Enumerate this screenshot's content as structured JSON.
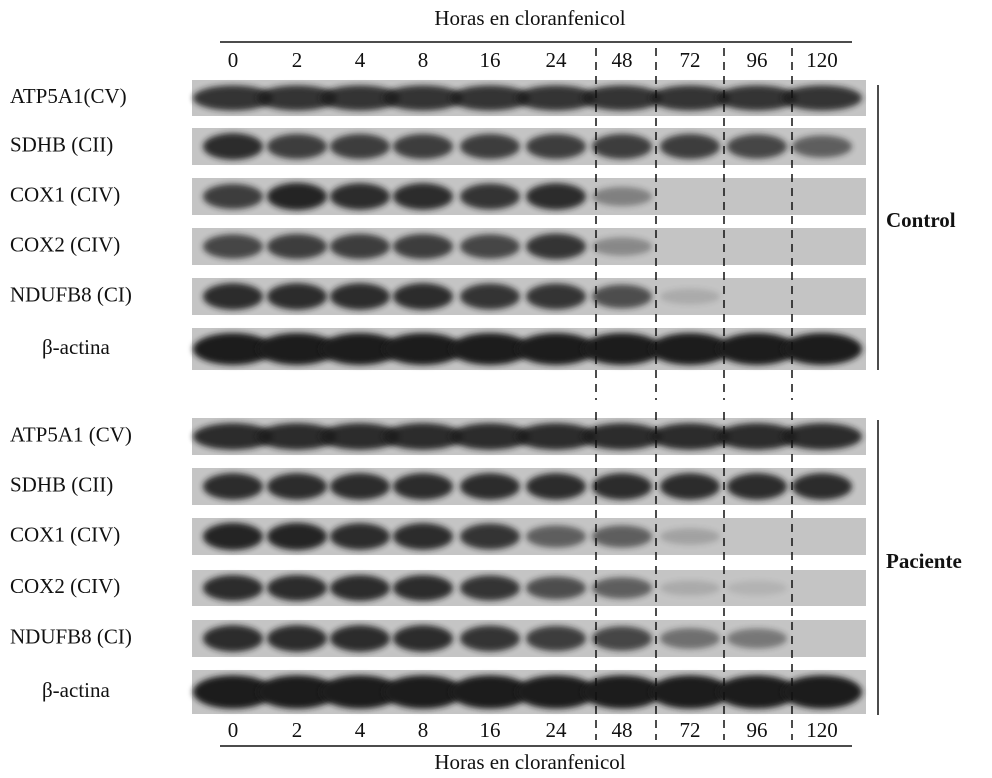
{
  "top_title": "Horas en cloranfenicol",
  "top_lanes": [
    0,
    2,
    4,
    8,
    16,
    24,
    48,
    72,
    96,
    120
  ],
  "groups": [
    {
      "label": "Control",
      "rows": [
        "ATP5A1(CV)",
        "SDHB (CII)",
        "COX1 (CIV)",
        "COX2 (CIV)",
        "NDUFB8 (CI)",
        "β-actina"
      ]
    },
    {
      "label": "Paciente",
      "rows": [
        "ATP5A1 (CV)",
        "SDHB (CII)",
        "COX1 (CIV)",
        "COX2 (CIV)",
        "NDUFB8 (CI)",
        "β-actina"
      ]
    }
  ],
  "bottom_lanes": [
    0,
    2,
    4,
    8,
    16,
    24,
    48,
    72,
    96,
    120
  ],
  "bottom_title": "Horas en cloranfenicol"
}
